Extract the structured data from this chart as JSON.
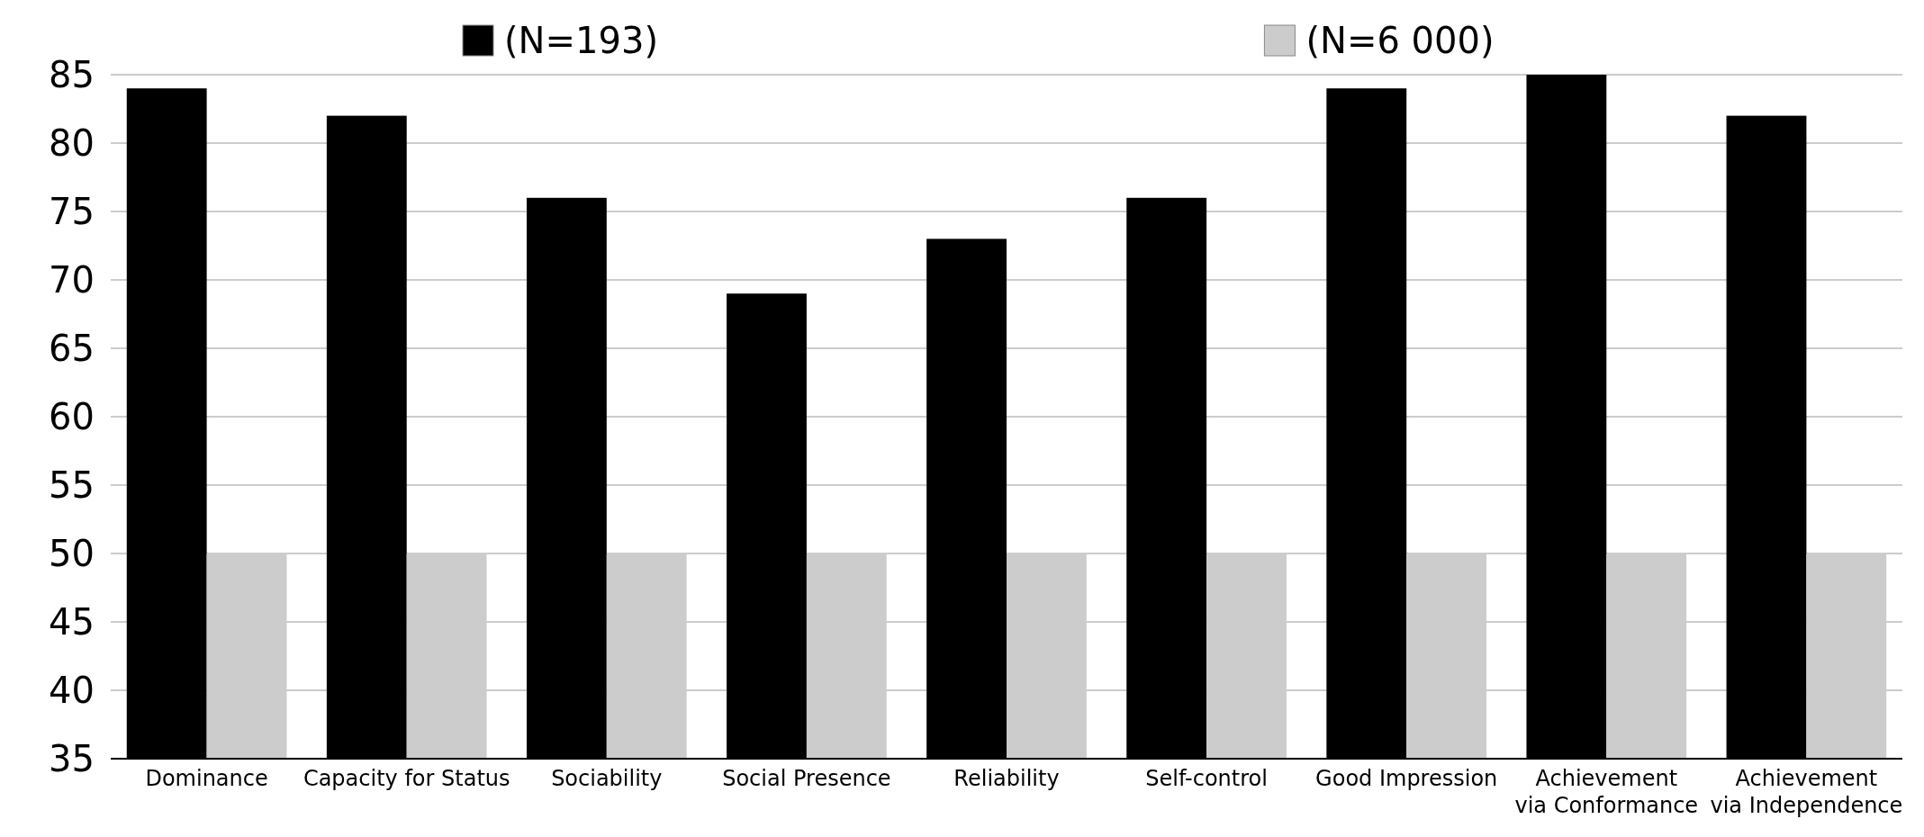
{
  "chart_data": {
    "type": "bar",
    "categories": [
      "Dominance",
      "Capacity for Status",
      "Sociability",
      "Social Presence",
      "Reliability",
      "Self-control",
      "Good Impression",
      "Achievement\nvia Conformance",
      "Achievement\nvia Independence"
    ],
    "series": [
      {
        "name": "(N=193)",
        "color": "#000000",
        "values": [
          84,
          82,
          76,
          69,
          73,
          76,
          84,
          85,
          82
        ]
      },
      {
        "name": "(N=6 000)",
        "color": "#cccccc",
        "values": [
          50,
          50,
          50,
          50,
          50,
          50,
          50,
          50,
          50
        ]
      }
    ],
    "ylim": [
      35,
      85
    ],
    "yticks": [
      35,
      40,
      45,
      50,
      55,
      60,
      65,
      70,
      75,
      80,
      85
    ],
    "grid": "y",
    "legend": "top"
  }
}
